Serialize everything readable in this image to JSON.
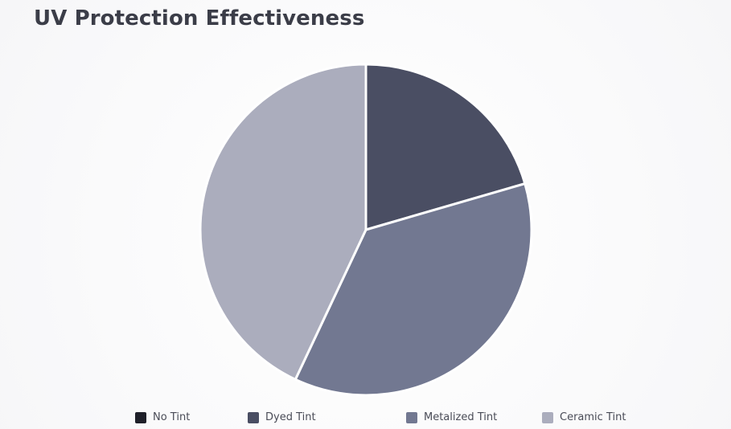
{
  "chart_data": {
    "type": "pie",
    "title": "UV Protection Effectiveness",
    "categories": [
      "No Tint",
      "Dyed Tint",
      "Metalized Tint",
      "Ceramic Tint"
    ],
    "values": [
      0,
      20.5,
      36.5,
      43
    ],
    "colors": [
      "#1f2029",
      "#4a4e63",
      "#727891",
      "#abadbd"
    ],
    "legend_position": "bottom"
  }
}
